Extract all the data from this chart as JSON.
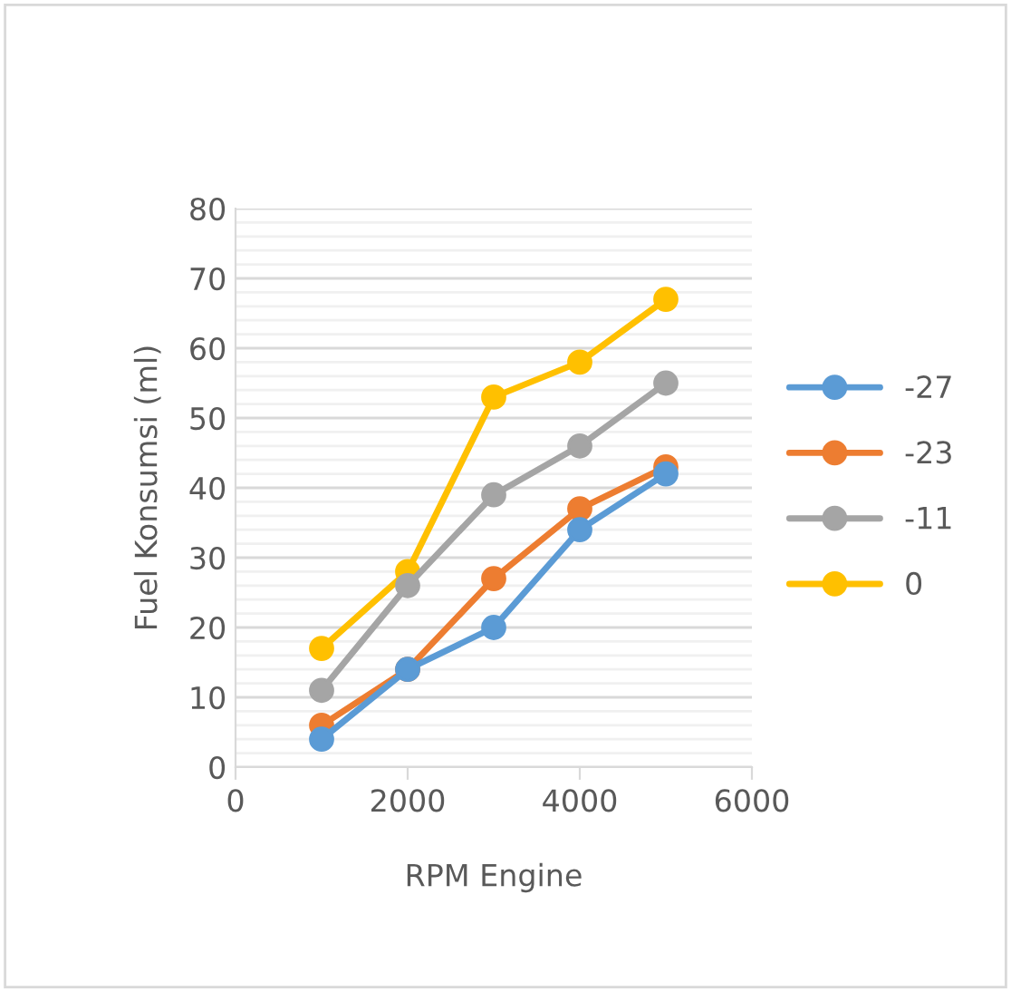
{
  "chart_data": {
    "type": "line",
    "xlabel": "RPM Engine",
    "ylabel": "Fuel Konsumsi (ml)",
    "x": [
      1000,
      2000,
      3000,
      4000,
      5000
    ],
    "series": [
      {
        "name": "-27",
        "color": "#5b9bd5",
        "values": [
          4,
          14,
          20,
          34,
          42
        ]
      },
      {
        "name": "-23",
        "color": "#ed7d31",
        "values": [
          6,
          14,
          27,
          37,
          43
        ]
      },
      {
        "name": "-11",
        "color": "#a5a5a5",
        "values": [
          11,
          26,
          39,
          46,
          55
        ]
      },
      {
        "name": "0",
        "color": "#ffc000",
        "values": [
          17,
          28,
          53,
          58,
          67
        ]
      }
    ],
    "xlim": [
      0,
      6000
    ],
    "xticks": [
      0,
      2000,
      4000,
      6000
    ],
    "ylim": [
      0,
      80
    ],
    "yticks": [
      0,
      10,
      20,
      30,
      40,
      50,
      60,
      70,
      80
    ],
    "grid": "y",
    "legend": "right",
    "marker": "circle",
    "line_style": "solid"
  }
}
